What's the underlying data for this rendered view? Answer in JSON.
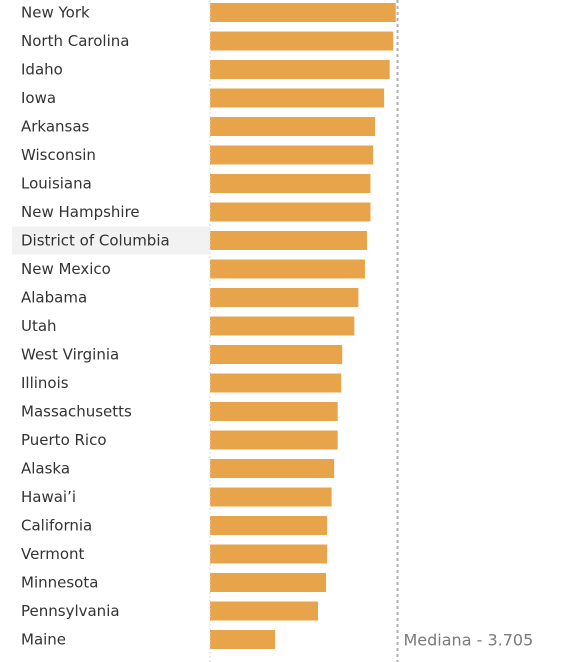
{
  "chart_data": {
    "type": "bar",
    "orientation": "horizontal",
    "categories": [
      "New York",
      "North Carolina",
      "Idaho",
      "Iowa",
      "Arkansas",
      "Wisconsin",
      "Louisiana",
      "New Hampshire",
      "District of Columbia",
      "New Mexico",
      "Alabama",
      "Utah",
      "West Virginia",
      "Illinois",
      "Massachusetts",
      "Puerto Rico",
      "Alaska",
      "Hawai’i",
      "California",
      "Vermont",
      "Minnesota",
      "Pennsylvania",
      "Maine"
    ],
    "values": [
      3.68,
      3.63,
      3.56,
      3.45,
      3.27,
      3.23,
      3.18,
      3.18,
      3.11,
      3.07,
      2.94,
      2.86,
      2.62,
      2.6,
      2.53,
      2.53,
      2.46,
      2.41,
      2.32,
      2.32,
      2.3,
      2.14,
      1.29
    ],
    "xlim": [
      0,
      3.705
    ],
    "highlighted_category": "District of Columbia",
    "reference_line": {
      "value": 3.705,
      "label": "Mediana - 3.705",
      "style": "dotted"
    },
    "bar_color": "#e8a44a",
    "highlight_color": "#f2f2f2",
    "reference_color": "#b0b0b0",
    "axis_line_color": "#d9d9d9",
    "grid": false,
    "legend": "none"
  }
}
